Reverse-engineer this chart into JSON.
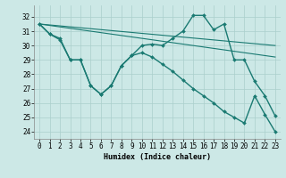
{
  "title": "",
  "xlabel": "Humidex (Indice chaleur)",
  "ylabel": "",
  "xlim": [
    -0.5,
    23.5
  ],
  "ylim": [
    23.5,
    32.8
  ],
  "yticks": [
    24,
    25,
    26,
    27,
    28,
    29,
    30,
    31,
    32
  ],
  "xticks": [
    0,
    1,
    2,
    3,
    4,
    5,
    6,
    7,
    8,
    9,
    10,
    11,
    12,
    13,
    14,
    15,
    16,
    17,
    18,
    19,
    20,
    21,
    22,
    23
  ],
  "bg_color": "#cce8e6",
  "line_color": "#1a7a72",
  "grid_color": "#aacfcc",
  "series": [
    {
      "x": [
        0,
        1,
        2,
        3,
        4,
        5,
        6,
        7,
        8,
        9,
        10,
        11,
        12,
        13,
        14,
        15,
        16,
        17,
        18,
        19,
        20,
        21,
        22,
        23
      ],
      "y": [
        31.5,
        30.8,
        30.5,
        29.0,
        29.0,
        27.2,
        26.6,
        27.2,
        28.6,
        29.3,
        30.0,
        30.1,
        30.0,
        30.5,
        31.0,
        32.1,
        32.1,
        31.1,
        31.5,
        29.0,
        29.0,
        27.5,
        26.5,
        25.1
      ],
      "marker": true,
      "lw": 1.0
    },
    {
      "x": [
        0,
        23
      ],
      "y": [
        31.5,
        30.0
      ],
      "marker": false,
      "lw": 0.8
    },
    {
      "x": [
        0,
        23
      ],
      "y": [
        31.5,
        29.2
      ],
      "marker": false,
      "lw": 0.8
    },
    {
      "x": [
        0,
        1,
        2,
        3,
        4,
        5,
        6,
        7,
        8,
        9,
        10,
        11,
        12,
        13,
        14,
        15,
        16,
        17,
        18,
        19,
        20,
        21,
        22,
        23
      ],
      "y": [
        31.5,
        30.8,
        30.4,
        29.0,
        29.0,
        27.2,
        26.6,
        27.2,
        28.6,
        29.3,
        29.5,
        29.2,
        28.7,
        28.2,
        27.6,
        27.0,
        26.5,
        26.0,
        25.4,
        25.0,
        24.6,
        26.5,
        25.2,
        24.0
      ],
      "marker": true,
      "lw": 1.0
    }
  ]
}
